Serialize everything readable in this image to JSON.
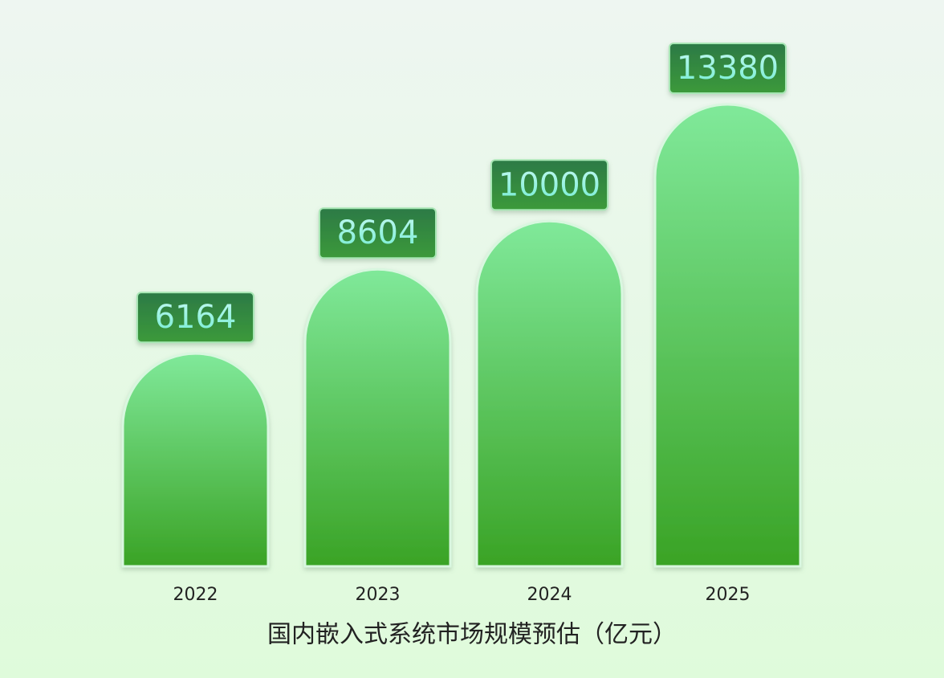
{
  "chart_data": {
    "type": "bar",
    "title": "国内嵌入式系统市场规模预估（亿元）",
    "categories": [
      "2022",
      "2023",
      "2024",
      "2025"
    ],
    "values": [
      6164,
      8604,
      10000,
      13380
    ],
    "color": "#3aa325"
  }
}
